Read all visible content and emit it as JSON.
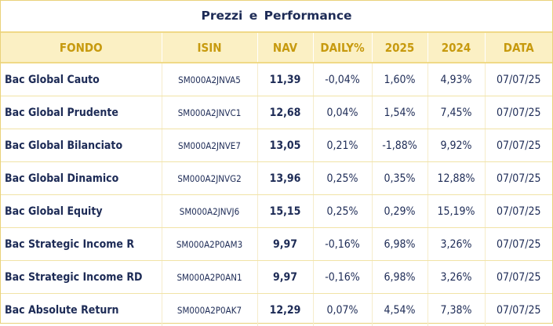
{
  "title": "Prezzi e Performance",
  "columns": {
    "fondo": "FONDO",
    "isin": "ISIN",
    "nav": "NAV",
    "daily": "DAILY%",
    "y2025": "2025",
    "y2024": "2024",
    "data": "DATA"
  },
  "rows": [
    {
      "fondo": "Bac Global Cauto",
      "isin": "SM000A2JNVA5",
      "nav": "11,39",
      "daily": "-0,04%",
      "y2025": "1,60%",
      "y2024": "4,93%",
      "data": "07/07/25"
    },
    {
      "fondo": "Bac Global Prudente",
      "isin": "SM000A2JNVC1",
      "nav": "12,68",
      "daily": "0,04%",
      "y2025": "1,54%",
      "y2024": "7,45%",
      "data": "07/07/25"
    },
    {
      "fondo": "Bac Global Bilanciato",
      "isin": "SM000A2JNVE7",
      "nav": "13,05",
      "daily": "0,21%",
      "y2025": "-1,88%",
      "y2024": "9,92%",
      "data": "07/07/25"
    },
    {
      "fondo": "Bac Global Dinamico",
      "isin": "SM000A2JNVG2",
      "nav": "13,96",
      "daily": "0,25%",
      "y2025": "0,35%",
      "y2024": "12,88%",
      "data": "07/07/25"
    },
    {
      "fondo": "Bac Global Equity",
      "isin": "SM000A2JNVJ6",
      "nav": "15,15",
      "daily": "0,25%",
      "y2025": "0,29%",
      "y2024": "15,19%",
      "data": "07/07/25"
    },
    {
      "fondo": "Bac Strategic Income R",
      "isin": "SM000A2P0AM3",
      "nav": "9,97",
      "daily": "-0,16%",
      "y2025": "6,98%",
      "y2024": "3,26%",
      "data": "07/07/25"
    },
    {
      "fondo": "Bac Strategic Income RD",
      "isin": "SM000A2P0AN1",
      "nav": "9,97",
      "daily": "-0,16%",
      "y2025": "6,98%",
      "y2024": "3,26%",
      "data": "07/07/25"
    },
    {
      "fondo": "Bac Absolute Return",
      "isin": "SM000A2P0AK7",
      "nav": "12,29",
      "daily": "0,07%",
      "y2025": "4,54%",
      "y2024": "7,38%",
      "data": "07/07/25"
    }
  ]
}
